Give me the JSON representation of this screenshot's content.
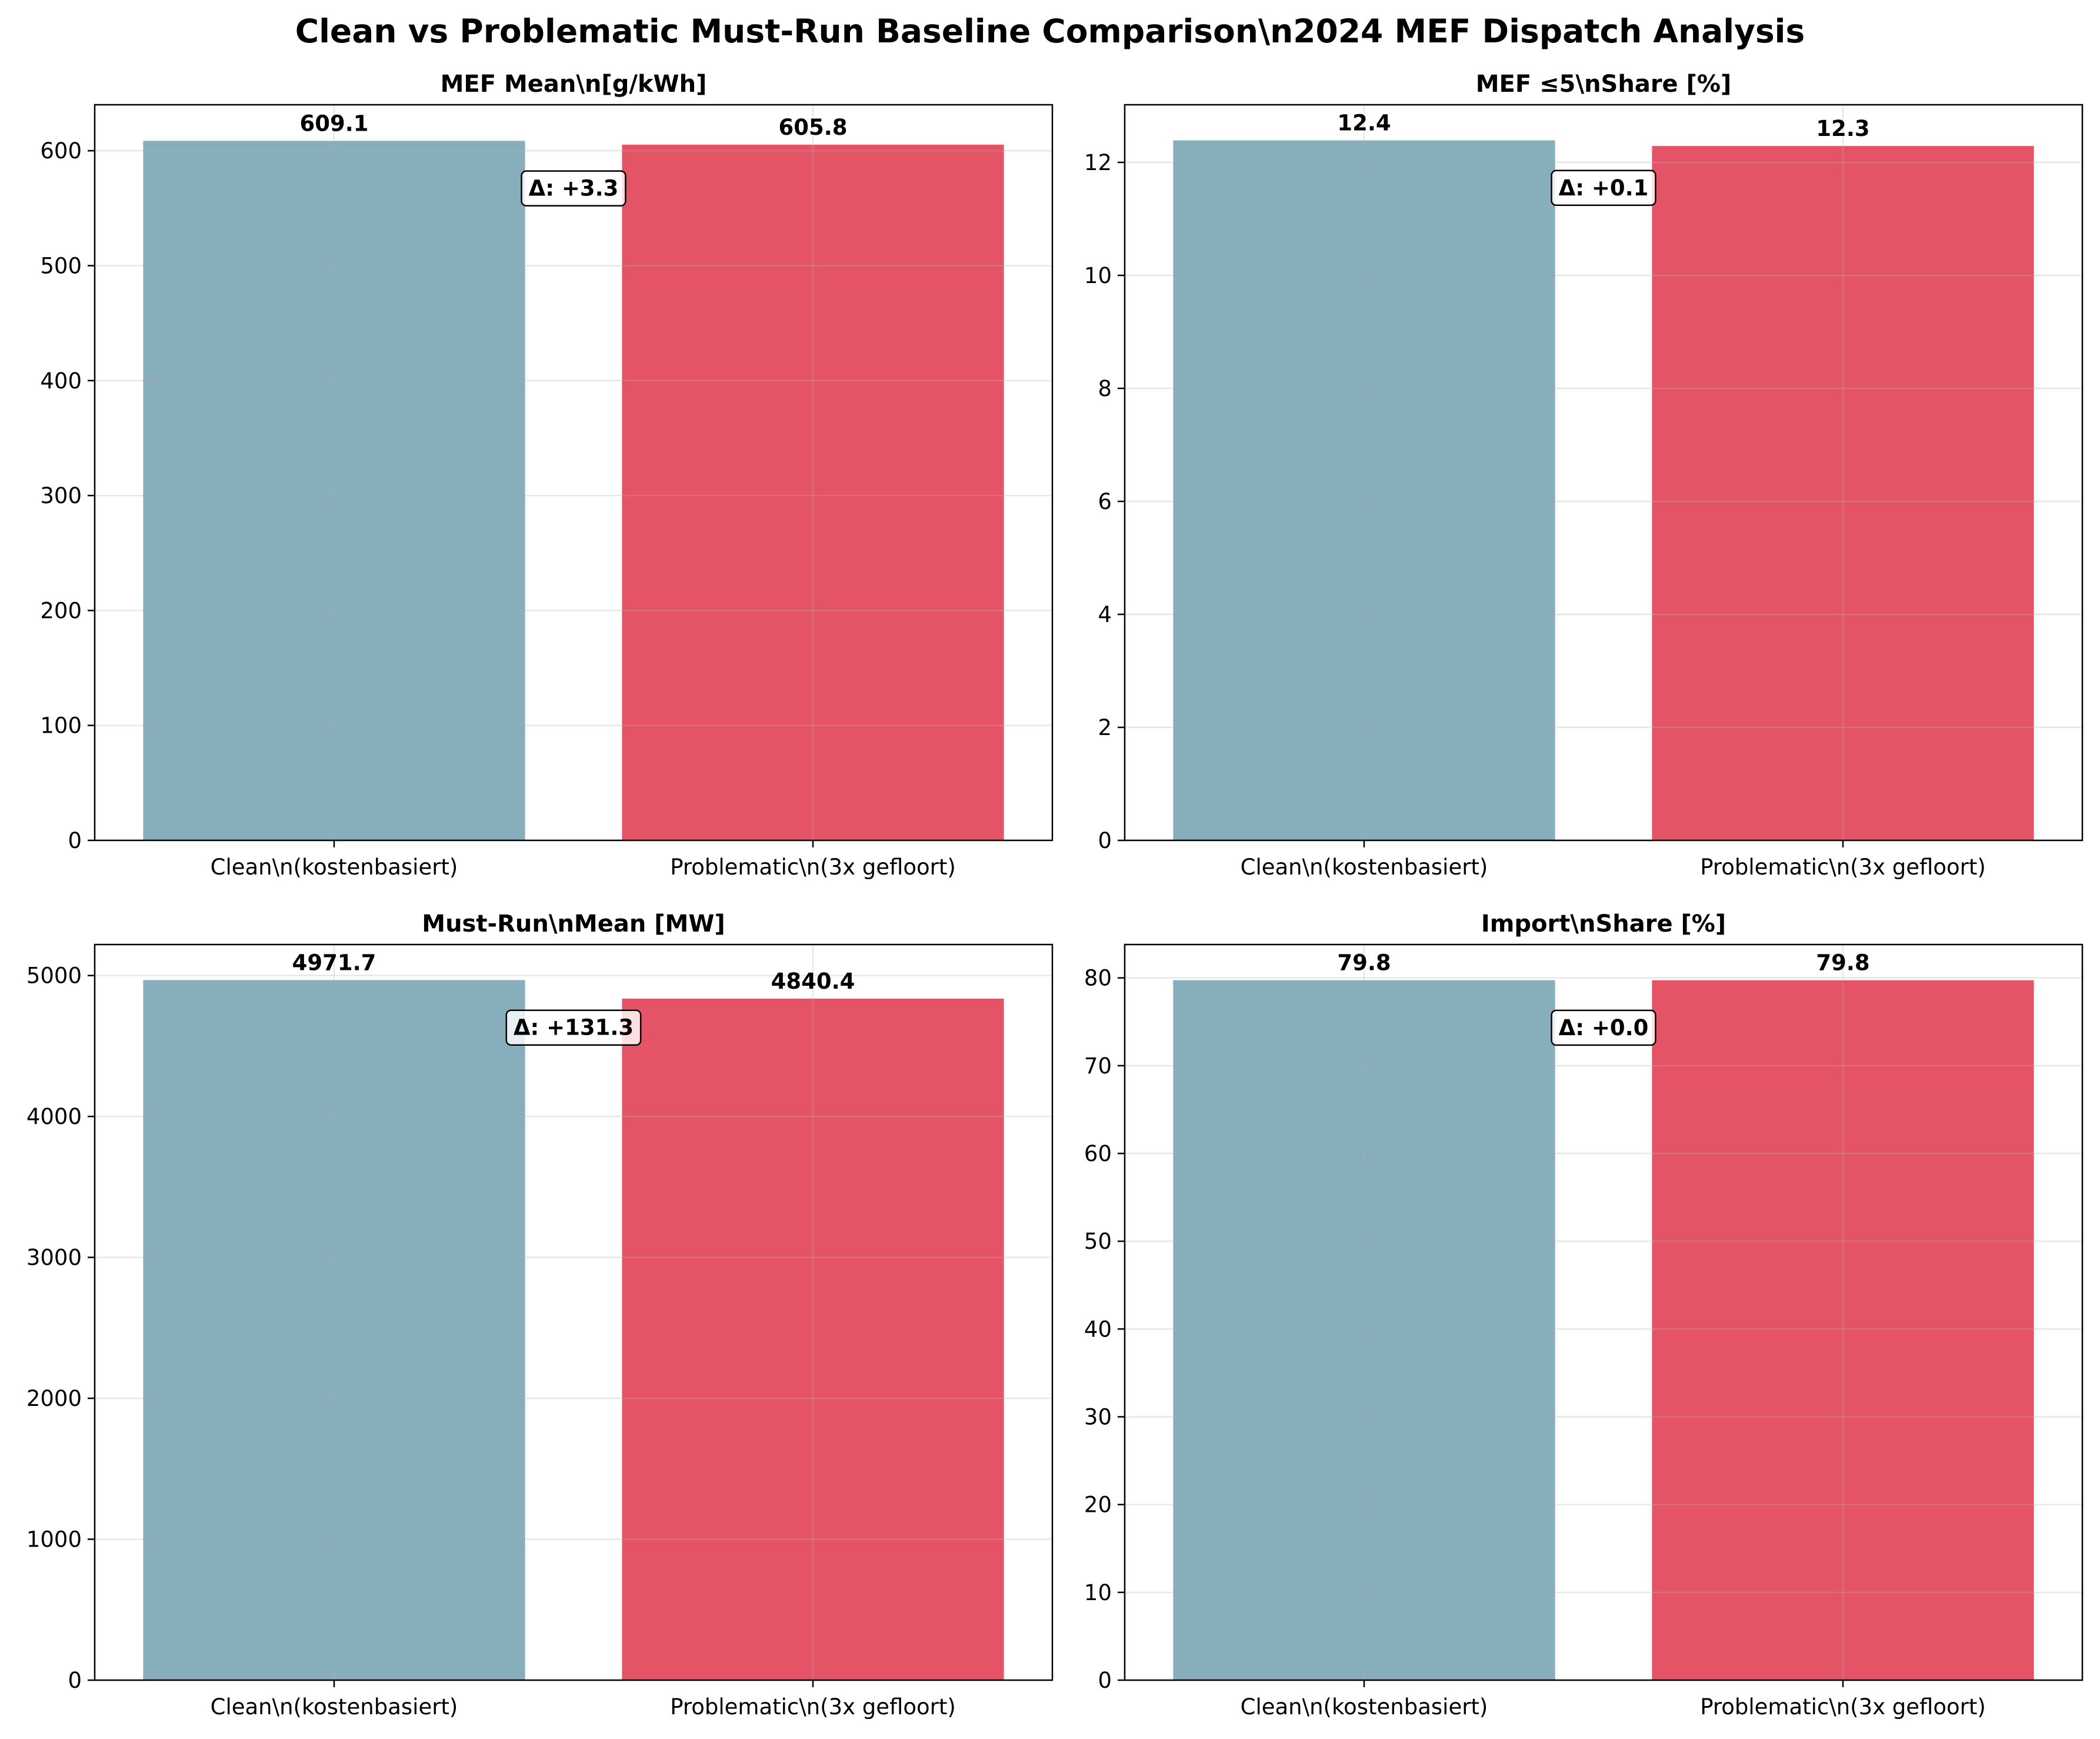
{
  "suptitle": "Clean vs Problematic Must-Run Baseline Comparison\\n2024 MEF Dispatch Analysis",
  "colors": {
    "clean": "#86aebb",
    "problematic": "#e55466",
    "grid": "#e6e6e6"
  },
  "chart_data": [
    {
      "type": "bar",
      "title": "MEF Mean\\n[g/kWh]",
      "categories": [
        "Clean\\n(kostenbasiert)",
        "Problematic\\n(3x gefloort)"
      ],
      "values": [
        609.1,
        605.8
      ],
      "value_labels": [
        "609.1",
        "605.8"
      ],
      "delta_label": "Δ: +3.3",
      "ylim": [
        0,
        640
      ],
      "yticks": [
        0,
        100,
        200,
        300,
        400,
        500,
        600
      ],
      "grid": true
    },
    {
      "type": "bar",
      "title": "MEF ≤5\\nShare [%]",
      "categories": [
        "Clean\\n(kostenbasiert)",
        "Problematic\\n(3x gefloort)"
      ],
      "values": [
        12.4,
        12.3
      ],
      "value_labels": [
        "12.4",
        "12.3"
      ],
      "delta_label": "Δ: +0.1",
      "ylim": [
        0,
        13.02
      ],
      "yticks": [
        0,
        2,
        4,
        6,
        8,
        10,
        12
      ],
      "grid": true
    },
    {
      "type": "bar",
      "title": "Must-Run\\nMean [MW]",
      "categories": [
        "Clean\\n(kostenbasiert)",
        "Problematic\\n(3x gefloort)"
      ],
      "values": [
        4971.7,
        4840.4
      ],
      "value_labels": [
        "4971.7",
        "4840.4"
      ],
      "delta_label": "Δ: +131.3",
      "ylim": [
        0,
        5220
      ],
      "yticks": [
        0,
        1000,
        2000,
        3000,
        4000,
        5000
      ],
      "grid": true
    },
    {
      "type": "bar",
      "title": "Import\\nShare [%]",
      "categories": [
        "Clean\\n(kostenbasiert)",
        "Problematic\\n(3x gefloort)"
      ],
      "values": [
        79.8,
        79.8
      ],
      "value_labels": [
        "79.8",
        "79.8"
      ],
      "delta_label": "Δ: +0.0",
      "ylim": [
        0,
        83.8
      ],
      "yticks": [
        0,
        10,
        20,
        30,
        40,
        50,
        60,
        70,
        80
      ],
      "grid": true
    }
  ]
}
